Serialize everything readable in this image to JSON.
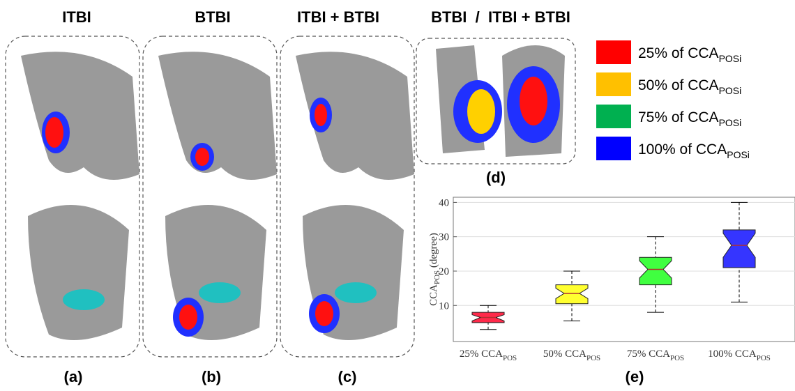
{
  "headers": [
    "ITBI",
    "BTBI",
    "ITBI + BTBI",
    "BTBI  /  ITBI + BTBI"
  ],
  "panel_labels": [
    "(a)",
    "(b)",
    "(c)",
    "(d)",
    "(e)"
  ],
  "legend": {
    "subscript": "POSi",
    "items": [
      {
        "name": "25% of CCA",
        "color": "#ff0000"
      },
      {
        "name": "50% of CCA",
        "color": "#ffc000"
      },
      {
        "name": "75% of CCA",
        "color": "#00b050"
      },
      {
        "name": "100% of CCA",
        "color": "#0000ff"
      }
    ]
  },
  "chart_data": {
    "type": "box",
    "ylabel": "CCA",
    "ylabel_subscript": "POS",
    "ylabel_suffix": " (degree)",
    "categories": [
      "25% CCA",
      "50% CCA",
      "75% CCA",
      "100% CCA"
    ],
    "category_subscript": "POS",
    "colors": [
      "#ff2a4a",
      "#ffff30",
      "#40ff40",
      "#3535ff"
    ],
    "min": [
      3,
      5.5,
      8,
      11
    ],
    "q1": [
      5,
      10.5,
      16,
      21
    ],
    "median": [
      6.5,
      13.5,
      20.5,
      27.5
    ],
    "q3": [
      8,
      16,
      24,
      32
    ],
    "max": [
      10,
      20,
      30,
      40
    ],
    "notch_low": [
      5.5,
      12,
      18,
      24
    ],
    "notch_high": [
      7.3,
      15,
      23,
      31
    ],
    "ylim": [
      -0.5,
      41.5
    ],
    "yticks": [
      10,
      20,
      30,
      40
    ],
    "grid": true
  }
}
